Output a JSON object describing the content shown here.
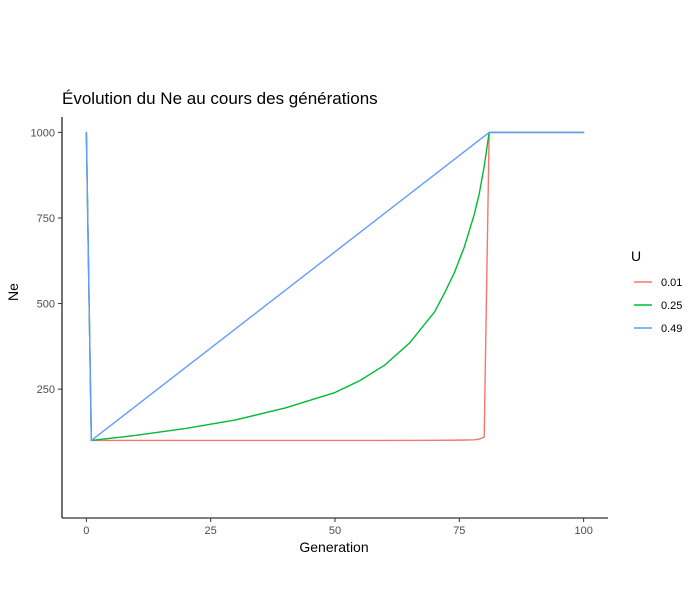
{
  "chart_data": {
    "type": "line",
    "title": "Évolution du Ne au cours des générations",
    "xlabel": "Generation",
    "ylabel": "Ne",
    "xlim": [
      -4.9,
      104.9
    ],
    "ylim": [
      -126.5,
      1045
    ],
    "xticks": [
      0,
      25,
      50,
      75,
      100
    ],
    "yticks": [
      250,
      500,
      750,
      1000
    ],
    "xtick_labels": [
      "0",
      "25",
      "50",
      "75",
      "100"
    ],
    "ytick_labels": [
      "250",
      "500",
      "750",
      "1000"
    ],
    "grid": false,
    "legend": {
      "title": "U",
      "position": "right",
      "entries": [
        "0.01",
        "0.25",
        "0.49"
      ]
    },
    "series": [
      {
        "name": "0.01",
        "color": "#F8766D",
        "x": [
          0,
          1,
          10,
          20,
          30,
          40,
          50,
          60,
          70,
          75,
          78,
          79,
          80,
          81,
          82,
          90,
          100
        ],
        "y": [
          1000,
          100,
          100,
          100,
          100,
          100,
          100,
          100,
          100.5,
          101,
          102,
          104,
          110,
          1000,
          1000,
          1000,
          1000
        ]
      },
      {
        "name": "0.25",
        "color": "#00BA38",
        "x": [
          0,
          1,
          10,
          20,
          30,
          40,
          50,
          55,
          60,
          65,
          70,
          72,
          74,
          76,
          78,
          79,
          80,
          81,
          82,
          90,
          100
        ],
        "y": [
          1000,
          100,
          115,
          135,
          160,
          195,
          240,
          275,
          320,
          385,
          475,
          530,
          590,
          665,
          760,
          820,
          900,
          1000,
          1000,
          1000,
          1000
        ]
      },
      {
        "name": "0.49",
        "color": "#619CFF",
        "x": [
          0,
          1,
          81,
          82,
          90,
          100
        ],
        "y": [
          1000,
          100,
          1000,
          1000,
          1000,
          1000
        ]
      }
    ]
  }
}
